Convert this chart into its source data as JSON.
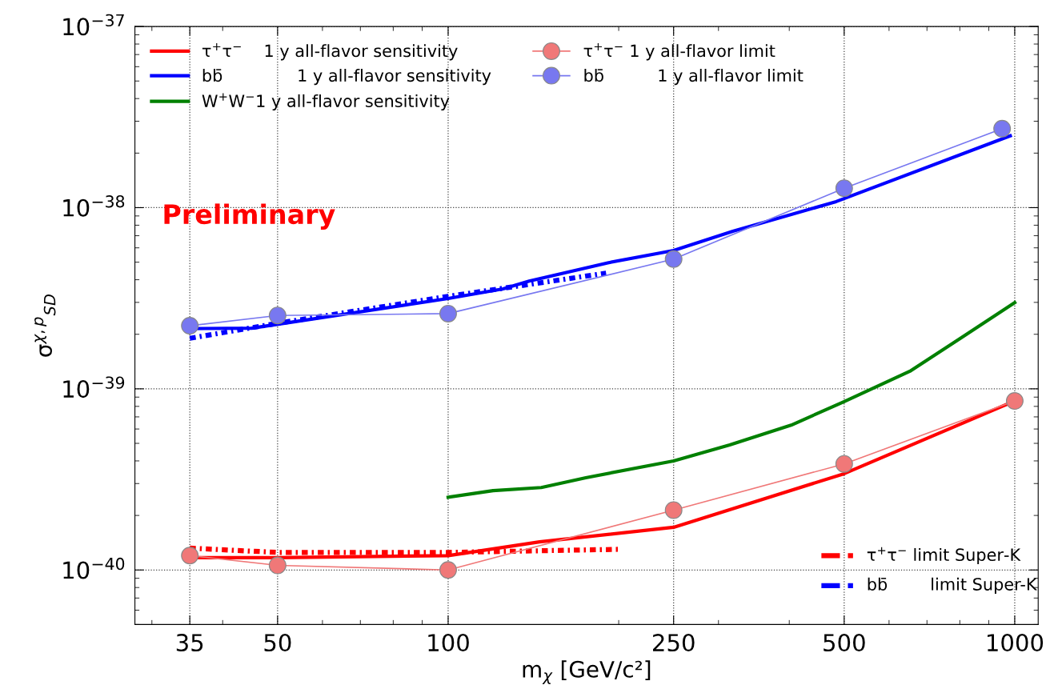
{
  "chart_data": {
    "type": "line",
    "xlabel": "m$_{χ}$ [GeV/c²]",
    "ylabel": "σ$^{χ,p}$$_{SD}$",
    "log": "xy",
    "grid": true,
    "legend": "top left",
    "xlim": [
      28,
      1100
    ],
    "xticks": [
      35,
      50,
      100,
      250,
      500,
      1000
    ],
    "ylim": [
      5e-41,
      1e-37
    ],
    "yticks": [
      {
        "value": 1e-40,
        "label": "10$^{−40}$"
      },
      {
        "value": 1e-39,
        "label": "10$^{−39}$"
      },
      {
        "value": 1e-38,
        "label": "10$^{−38}$"
      },
      {
        "value": 1e-37,
        "label": "10$^{−37}$"
      }
    ],
    "annotations": [
      "Preliminary"
    ],
    "series": [
      {
        "name": "τ$^{+}$τ$^{−}$    1 y all-flavor sensitivity",
        "color": "#ff0000",
        "line_style": "solid",
        "marker": "none",
        "x": [
          35,
          50,
          100,
          145,
          250,
          500,
          1000
        ],
        "values": [
          1.17e-40,
          1.17e-40,
          1.2e-40,
          1.43e-40,
          1.72e-40,
          3.4e-40,
          8.57e-40
        ]
      },
      {
        "name": "bb̄              1 y all-flavor sensitivity",
        "color": "#0000ff",
        "line_style": "solid",
        "marker": "none",
        "x": [
          35,
          45,
          100,
          125,
          139,
          192,
          250,
          318,
          484,
          982
        ],
        "values": [
          2.15e-39,
          2.16e-39,
          3.15e-39,
          3.56e-39,
          3.93e-39,
          4.97e-39,
          5.8e-39,
          7.4e-39,
          1.08e-38,
          2.49e-38
        ]
      },
      {
        "name": "W$^{+}$W$^{−}$1 y all-flavor sensitivity",
        "color": "#008000",
        "line_style": "solid",
        "marker": "none",
        "x": [
          100,
          120,
          146,
          175,
          250,
          314,
          403,
          500,
          653,
          802,
          1000
        ],
        "values": [
          2.52e-40,
          2.74e-40,
          2.85e-40,
          3.23e-40,
          4e-40,
          4.9e-40,
          6.3e-40,
          8.5e-40,
          1.25e-39,
          1.9e-39,
          2.99e-39
        ]
      },
      {
        "name": "τ$^{+}$τ$^{−}$ 1 y all-flavor limit",
        "color": "#f07878",
        "line_style": "solid",
        "marker": "circle",
        "x": [
          35,
          50,
          100,
          250,
          500,
          1000
        ],
        "values": [
          1.2e-40,
          1.06e-40,
          1e-40,
          2.14e-40,
          3.85e-40,
          8.57e-40
        ]
      },
      {
        "name": "bb̄          1 y all-flavor limit",
        "color": "#7878f0",
        "line_style": "solid",
        "marker": "circle",
        "x": [
          35,
          50,
          100,
          250,
          500,
          950
        ],
        "values": [
          2.23e-39,
          2.54e-39,
          2.6e-39,
          5.2e-39,
          1.28e-38,
          2.73e-38
        ]
      },
      {
        "name": "τ$^{+}$τ$^{−}$ limit Super-K",
        "color": "#ff0000",
        "line_style": "dotted",
        "marker": "none",
        "x": [
          35,
          50,
          100,
          200
        ],
        "values": [
          1.32e-40,
          1.25e-40,
          1.25e-40,
          1.3e-40
        ]
      },
      {
        "name": "bb̄        limit Super-K",
        "color": "#0000ff",
        "line_style": "dotted",
        "marker": "none",
        "x": [
          35,
          50,
          100,
          190
        ],
        "values": [
          1.9e-39,
          2.3e-39,
          3.24e-39,
          4.35e-39
        ]
      }
    ]
  }
}
